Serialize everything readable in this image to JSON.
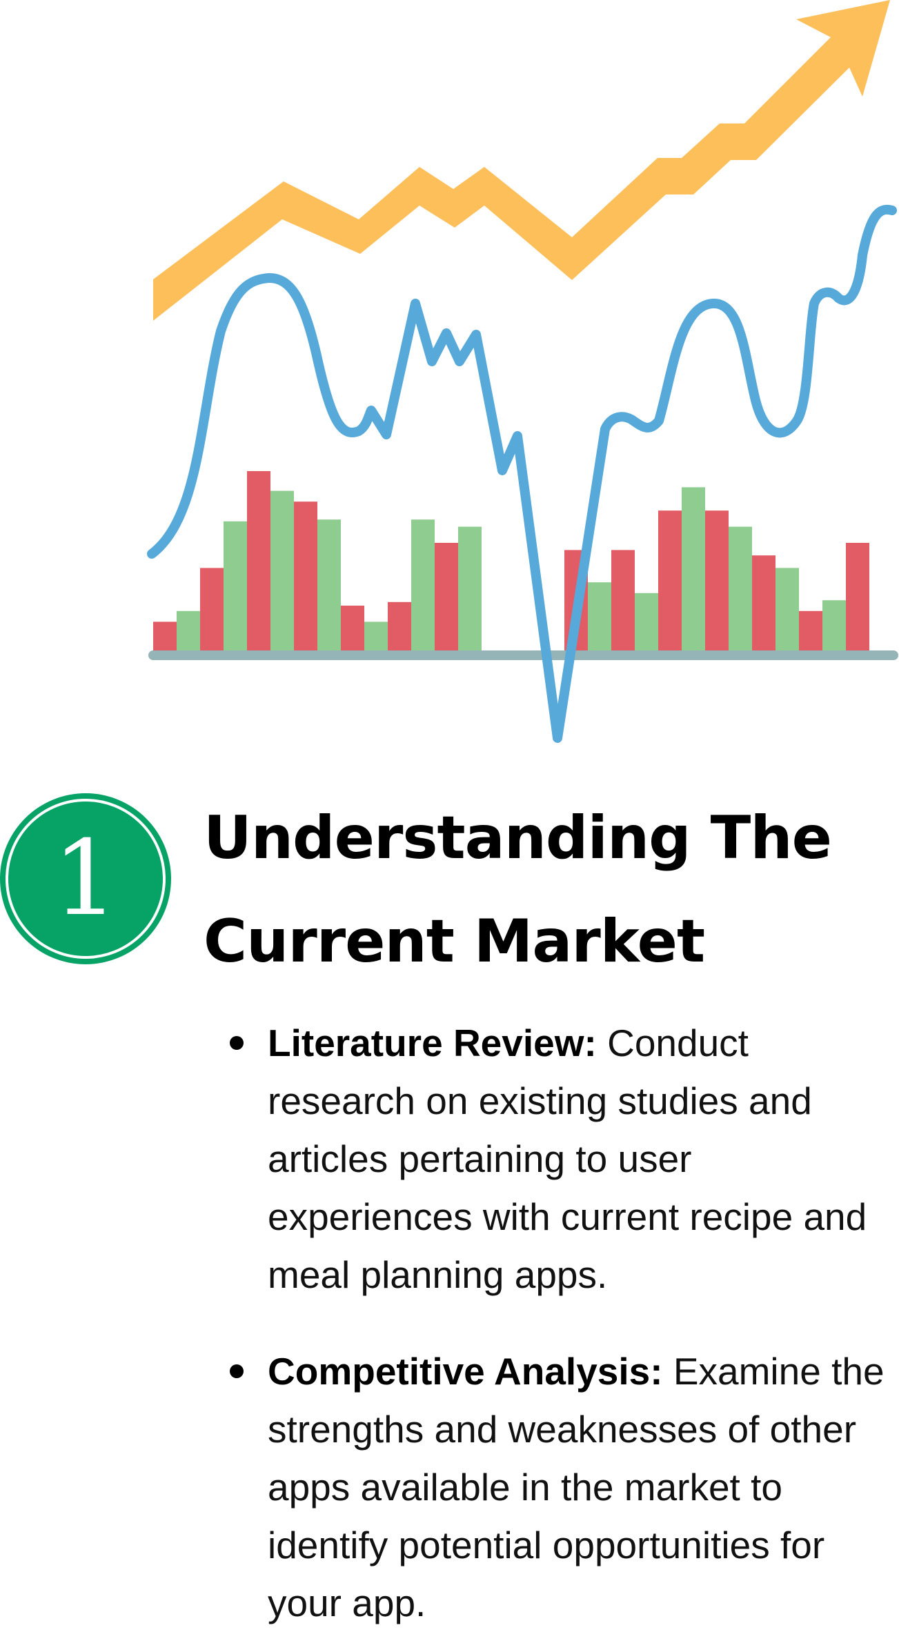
{
  "colors": {
    "arrow": "#fdbf5a",
    "line": "#56a9d9",
    "bar_red": "#e25c66",
    "bar_green": "#8fcc8f",
    "baseline": "#94b4b8",
    "badge": "#06a266"
  },
  "illustration": {
    "icons": [
      "trend-arrow-icon",
      "line-graph-icon",
      "bar-chart-icon"
    ],
    "bar_heights": [
      0.16,
      0.22,
      0.46,
      0.72,
      1.0,
      0.89,
      0.83,
      0.73,
      0.25,
      0.16,
      0.27,
      0.73,
      0.6,
      0.69,
      0.56,
      0.38,
      0.56,
      0.32,
      0.78,
      0.91,
      0.78,
      0.69,
      0.53,
      0.46,
      0.22,
      0.28,
      0.6
    ],
    "bar_colors": [
      "red",
      "green",
      "red",
      "green",
      "red",
      "green",
      "red",
      "green",
      "red",
      "green",
      "red",
      "green",
      "red",
      "green",
      "red",
      "green",
      "red",
      "green",
      "red",
      "green",
      "red",
      "green",
      "red",
      "green",
      "red",
      "green",
      "red"
    ],
    "bar_gap_after": [
      13,
      16
    ]
  },
  "step": {
    "number": "1",
    "title": "Understanding The Current Market"
  },
  "bullets": [
    {
      "term": "Literature Review:",
      "text": " Conduct research on existing studies and articles pertaining to user experiences with current recipe and meal planning apps."
    },
    {
      "term": "Competitive Analysis:",
      "text": " Examine the strengths and weaknesses of other apps available in the market to identify potential opportunities for your app."
    }
  ]
}
